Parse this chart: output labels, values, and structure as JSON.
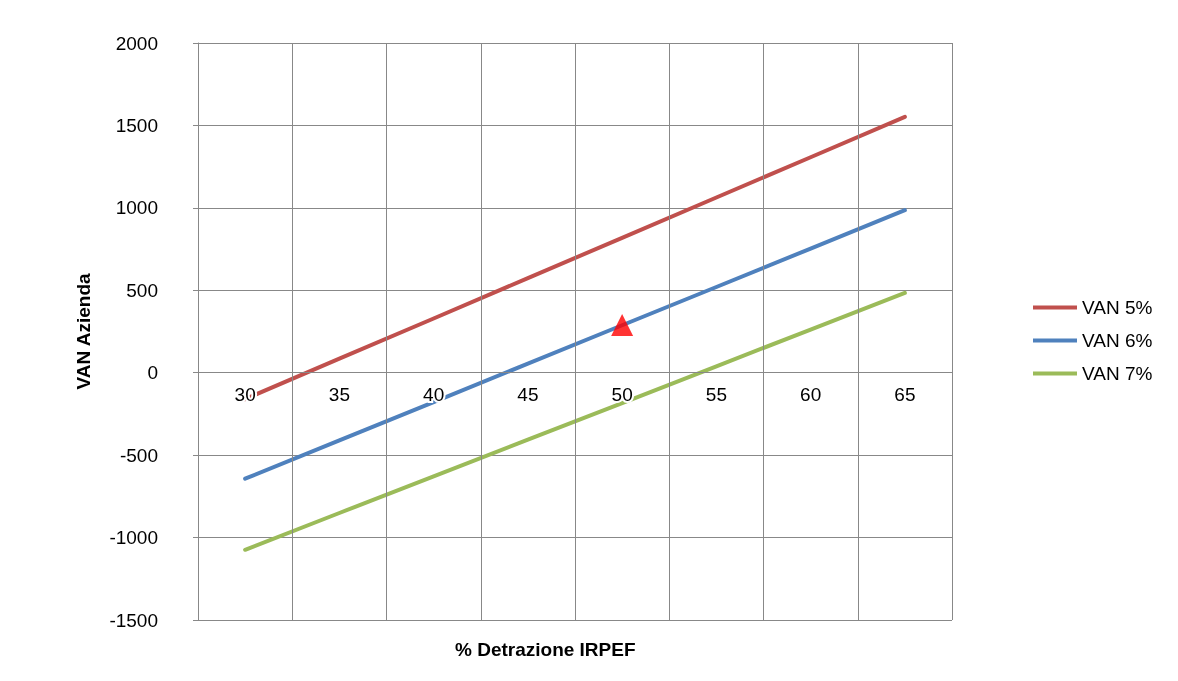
{
  "chart_data": {
    "type": "line",
    "xlabel": "% Detrazione IRPEF",
    "ylabel": "VAN Azienda",
    "categories": [
      "30",
      "35",
      "40",
      "45",
      "50",
      "55",
      "60",
      "65"
    ],
    "ylim": [
      -1500,
      2000
    ],
    "yticks": [
      -1500,
      -1000,
      -500,
      0,
      500,
      1000,
      1500,
      2000
    ],
    "grid": true,
    "legend": "right",
    "marker": "none",
    "series": [
      {
        "name": "VAN 5%",
        "color": "#c0504d",
        "values": [
          -160,
          85,
          329,
          574,
          818,
          1063,
          1307,
          1552
        ]
      },
      {
        "name": "VAN 6%",
        "color": "#4f81bd",
        "values": [
          -643,
          -410,
          -178,
          55,
          288,
          520,
          753,
          986
        ]
      },
      {
        "name": "VAN 7%",
        "color": "#9bbb59",
        "values": [
          -1074,
          -851,
          -629,
          -406,
          -184,
          39,
          262,
          484
        ]
      },
      {
        "type": "scatter",
        "marker": "triangle",
        "color": "#ff0000",
        "x": [
          "50"
        ],
        "values": [
          289
        ]
      }
    ]
  }
}
